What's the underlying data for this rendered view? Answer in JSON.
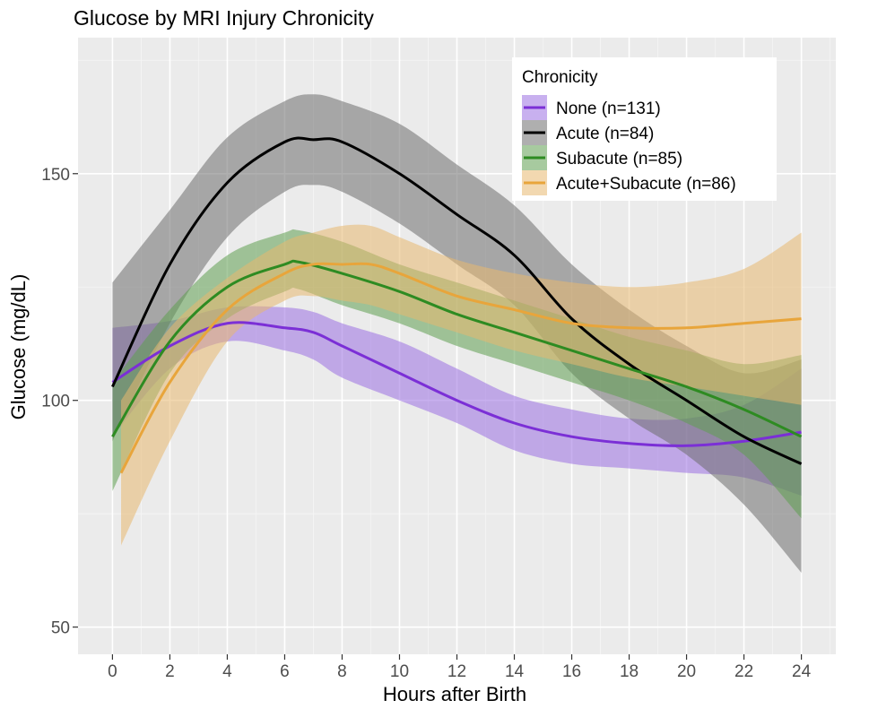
{
  "chart_data": {
    "type": "line",
    "title": "Glucose by MRI Injury Chronicity",
    "xlabel": "Hours after Birth",
    "ylabel": "Glucose (mg/dL)",
    "xlim": [
      -1.2,
      25.2
    ],
    "ylim": [
      44,
      180
    ],
    "x_ticks": [
      0,
      2,
      4,
      6,
      8,
      10,
      12,
      14,
      16,
      18,
      20,
      22,
      24
    ],
    "y_ticks": [
      50,
      100,
      150
    ],
    "grid": true,
    "legend": {
      "title": "Chronicity",
      "position": "top-right"
    },
    "series": [
      {
        "name": "None (n=131)",
        "color": "#7b2fd6",
        "band_color": "#9b6fe2",
        "x": [
          0,
          2,
          4,
          6,
          7,
          8,
          10,
          12,
          14,
          16,
          18,
          20,
          22,
          24
        ],
        "y": [
          104,
          112,
          117,
          116,
          115,
          112,
          106,
          100,
          95,
          92,
          90.5,
          90,
          91,
          93
        ],
        "lower": [
          92,
          107,
          113,
          111,
          109,
          105,
          100,
          95,
          89,
          86,
          85,
          84,
          83,
          79
        ],
        "upper": [
          116,
          117.5,
          120.5,
          120.5,
          119.5,
          117,
          113,
          107,
          101,
          98,
          96,
          96,
          99,
          107
        ]
      },
      {
        "name": "Acute (n=84)",
        "color": "#000000",
        "band_color": "#6e6e6e",
        "x": [
          0,
          2,
          4,
          6,
          7,
          8,
          10,
          12,
          14,
          16,
          18,
          20,
          22,
          24
        ],
        "y": [
          103,
          130,
          148,
          157,
          157.5,
          157,
          150,
          141,
          132,
          118,
          108,
          100,
          92,
          86
        ],
        "lower": [
          91,
          117,
          136,
          146,
          147.5,
          146,
          139,
          130,
          121,
          106,
          96,
          88,
          77,
          62
        ],
        "upper": [
          126,
          142,
          158,
          166,
          167.5,
          166,
          161,
          152,
          143,
          130,
          120,
          112,
          106,
          109
        ]
      },
      {
        "name": "Subacute (n=85)",
        "color": "#2e8b22",
        "band_color": "#5f9f50",
        "x": [
          0,
          2,
          4,
          6,
          6.5,
          8,
          10,
          12,
          14,
          16,
          18,
          20,
          22,
          24
        ],
        "y": [
          92,
          113,
          125,
          130,
          130.5,
          128,
          124,
          119,
          115,
          111,
          107,
          103,
          98,
          92
        ],
        "lower": [
          80,
          106,
          118,
          124,
          124.5,
          121,
          117,
          112,
          108,
          104,
          100,
          95,
          88,
          74
        ],
        "upper": [
          104,
          120,
          132,
          137,
          137.5,
          135,
          130,
          126,
          122,
          118,
          114,
          111,
          108,
          110
        ]
      },
      {
        "name": "Acute+Subacute (n=86)",
        "color": "#e8a53b",
        "band_color": "#e8b870",
        "x": [
          0.3,
          2,
          4,
          6,
          7,
          8,
          9,
          10,
          12,
          14,
          16,
          18,
          20,
          22,
          24
        ],
        "y": [
          84,
          104,
          120,
          128,
          130,
          130,
          130,
          128,
          123,
          120,
          117,
          116,
          116,
          117,
          118
        ],
        "lower": [
          68,
          91,
          113,
          122,
          123,
          122,
          121,
          119,
          115,
          111,
          108,
          105,
          103,
          101,
          99
        ],
        "upper": [
          100,
          116,
          127,
          135,
          137,
          138.5,
          138.5,
          136,
          131,
          128,
          126,
          125,
          126,
          129,
          137
        ]
      }
    ]
  }
}
